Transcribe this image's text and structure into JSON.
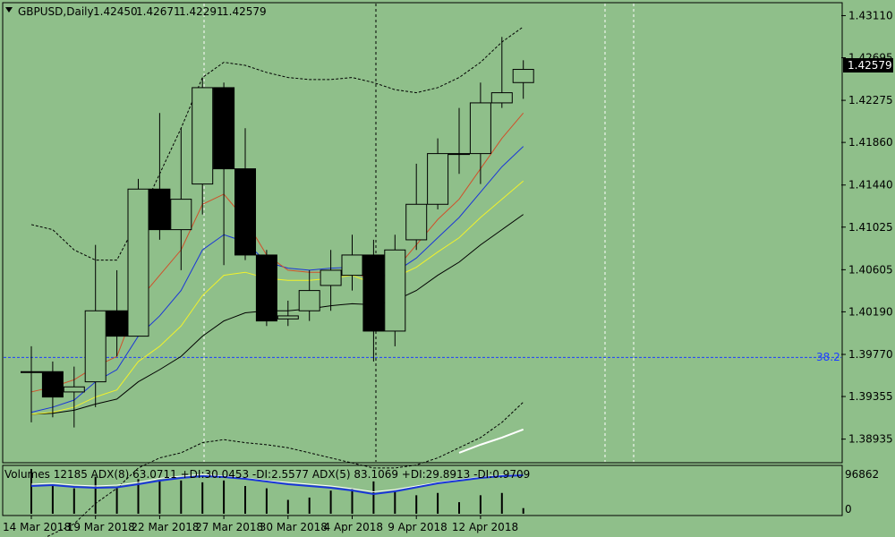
{
  "header": {
    "symbol": "GBPUSD,Daily",
    "open": "1.42450",
    "high": "1.42671",
    "low": "1.42291",
    "close": "1.42579"
  },
  "price_axis": {
    "ticks": [
      "1.43110",
      "1.42695",
      "1.42275",
      "1.41860",
      "1.41440",
      "1.41025",
      "1.40605",
      "1.40190",
      "1.39770",
      "1.39355",
      "1.38935"
    ],
    "current_price_label": "1.42579"
  },
  "fib_label": "38.2",
  "indicator": {
    "text": "Volumes 12185  ADX(8) 63.0711 +DI:30.0453 -DI:2.5577  ADX(5) 83.1069 +DI:29.8913 -DI:0.9709",
    "axis_top": "96862",
    "axis_bottom": "0"
  },
  "date_axis": [
    "14 Mar 2018",
    "19 Mar 2018",
    "22 Mar 2018",
    "27 Mar 2018",
    "30 Mar 2018",
    "4 Apr 2018",
    "9 Apr 2018",
    "12 Apr 2018"
  ],
  "colors": {
    "background": "#8fbf8a",
    "bull_body": "#8fbf8a",
    "bear_body": "#000000",
    "ma_fast": "#d0502a",
    "ma_mid": "#1a36d8",
    "ma_slow": "#f2f22a",
    "ma_long": "#000000",
    "fib_line": "#1f3fff",
    "adx_line": "#ffffff",
    "di_line": "#1a36d8"
  },
  "chart_data": {
    "type": "candlestick",
    "ylim": [
      1.3872,
      1.4322
    ],
    "fib_level": 1.3974,
    "current_price": 1.42579,
    "candles": [
      {
        "o": 1.396,
        "h": 1.3985,
        "l": 1.391,
        "c": 1.396
      },
      {
        "o": 1.396,
        "h": 1.397,
        "l": 1.3915,
        "c": 1.3935
      },
      {
        "o": 1.394,
        "h": 1.3965,
        "l": 1.3905,
        "c": 1.3945
      },
      {
        "o": 1.395,
        "h": 1.4085,
        "l": 1.3925,
        "c": 1.402
      },
      {
        "o": 1.402,
        "h": 1.406,
        "l": 1.3975,
        "c": 1.3995
      },
      {
        "o": 1.3995,
        "h": 1.415,
        "l": 1.3995,
        "c": 1.414
      },
      {
        "o": 1.414,
        "h": 1.4215,
        "l": 1.409,
        "c": 1.41
      },
      {
        "o": 1.41,
        "h": 1.42,
        "l": 1.406,
        "c": 1.413
      },
      {
        "o": 1.4145,
        "h": 1.425,
        "l": 1.4115,
        "c": 1.424
      },
      {
        "o": 1.424,
        "h": 1.4245,
        "l": 1.4065,
        "c": 1.416
      },
      {
        "o": 1.416,
        "h": 1.42,
        "l": 1.407,
        "c": 1.4075
      },
      {
        "o": 1.4075,
        "h": 1.408,
        "l": 1.4005,
        "c": 1.401
      },
      {
        "o": 1.4012,
        "h": 1.403,
        "l": 1.4005,
        "c": 1.4015
      },
      {
        "o": 1.402,
        "h": 1.406,
        "l": 1.401,
        "c": 1.404
      },
      {
        "o": 1.4045,
        "h": 1.408,
        "l": 1.402,
        "c": 1.406
      },
      {
        "o": 1.4055,
        "h": 1.4095,
        "l": 1.404,
        "c": 1.4075
      },
      {
        "o": 1.4075,
        "h": 1.409,
        "l": 1.397,
        "c": 1.4
      },
      {
        "o": 1.4,
        "h": 1.4095,
        "l": 1.3985,
        "c": 1.408
      },
      {
        "o": 1.409,
        "h": 1.4165,
        "l": 1.408,
        "c": 1.4125
      },
      {
        "o": 1.4125,
        "h": 1.419,
        "l": 1.412,
        "c": 1.4175
      },
      {
        "o": 1.4175,
        "h": 1.422,
        "l": 1.4155,
        "c": 1.4175
      },
      {
        "o": 1.4175,
        "h": 1.4245,
        "l": 1.4145,
        "c": 1.4225
      },
      {
        "o": 1.4225,
        "h": 1.429,
        "l": 1.422,
        "c": 1.4235
      },
      {
        "o": 1.4245,
        "h": 1.4267,
        "l": 1.4229,
        "c": 1.4258
      }
    ],
    "ma_fast": [
      1.394,
      1.3945,
      1.3952,
      1.3965,
      1.3975,
      1.403,
      1.4055,
      1.408,
      1.4125,
      1.4135,
      1.411,
      1.4075,
      1.406,
      1.4058,
      1.4058,
      1.406,
      1.4048,
      1.406,
      1.4085,
      1.411,
      1.413,
      1.416,
      1.419,
      1.4215
    ],
    "ma_mid": [
      1.392,
      1.3925,
      1.3932,
      1.395,
      1.3962,
      1.3995,
      1.4015,
      1.404,
      1.408,
      1.4095,
      1.4088,
      1.4068,
      1.4062,
      1.406,
      1.4062,
      1.4063,
      1.4052,
      1.4058,
      1.4072,
      1.4092,
      1.4112,
      1.4137,
      1.4162,
      1.4182
    ],
    "ma_slow": [
      1.3918,
      1.392,
      1.3925,
      1.3935,
      1.3942,
      1.397,
      1.3985,
      1.4005,
      1.4035,
      1.4055,
      1.4058,
      1.4052,
      1.405,
      1.405,
      1.4052,
      1.4055,
      1.4047,
      1.4053,
      1.4063,
      1.4078,
      1.4092,
      1.4112,
      1.413,
      1.4148
    ],
    "ma_long": [
      1.3918,
      1.3919,
      1.3922,
      1.3928,
      1.3933,
      1.395,
      1.3962,
      1.3975,
      1.3995,
      1.401,
      1.4018,
      1.402,
      1.402,
      1.4022,
      1.4025,
      1.4027,
      1.4026,
      1.403,
      1.404,
      1.4055,
      1.4068,
      1.4085,
      1.41,
      1.4115
    ],
    "band_upper": [
      1.4105,
      1.41,
      1.408,
      1.407,
      1.407,
      1.411,
      1.4155,
      1.42,
      1.425,
      1.4265,
      1.4262,
      1.4255,
      1.425,
      1.4248,
      1.4248,
      1.425,
      1.4245,
      1.4238,
      1.4235,
      1.424,
      1.425,
      1.4265,
      1.4285,
      1.43
    ],
    "band_lower": [
      1.379,
      1.38,
      1.381,
      1.383,
      1.3845,
      1.3865,
      1.3875,
      1.388,
      1.389,
      1.3893,
      1.389,
      1.3888,
      1.3885,
      1.388,
      1.3875,
      1.387,
      1.3865,
      1.3865,
      1.3868,
      1.3875,
      1.3885,
      1.3895,
      1.391,
      1.393
    ],
    "white_line_x": [
      20,
      21,
      22,
      23
    ],
    "white_line_y": [
      1.388,
      1.3888,
      1.3895,
      1.3903
    ],
    "volume": {
      "ylim": [
        0,
        96862
      ],
      "values": [
        96862,
        60000,
        55000,
        80000,
        55000,
        75000,
        70000,
        72000,
        68000,
        72000,
        60000,
        55000,
        30000,
        35000,
        50000,
        55000,
        70000,
        50000,
        40000,
        45000,
        25000,
        40000,
        45000,
        12185
      ]
    },
    "adx_line": [
      62,
      64,
      60,
      58,
      60,
      66,
      75,
      80,
      84,
      80,
      76,
      70,
      66,
      62,
      58,
      52,
      45,
      50,
      58,
      66,
      72,
      78,
      82,
      83
    ],
    "di_line": [
      58,
      60,
      56,
      54,
      55,
      62,
      70,
      76,
      80,
      78,
      74,
      68,
      62,
      58,
      54,
      48,
      40,
      46,
      55,
      64,
      70,
      76,
      80,
      82
    ]
  }
}
